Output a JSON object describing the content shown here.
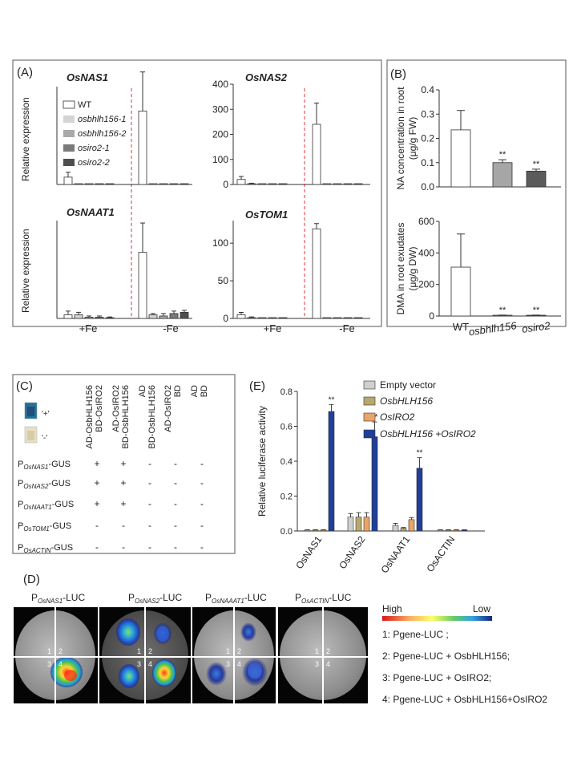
{
  "colors": {
    "wt": "#ffffff",
    "bhlh1": "#d4d4d4",
    "bhlh2": "#a9a9a9",
    "iro1": "#7a7a7a",
    "iro2": "#4e4e4e",
    "empty": "#cfcfcf",
    "osbhlh156": "#b7a96e",
    "osiro2": "#e8a469",
    "combo": "#1f3f99",
    "divider": "#e0333a"
  },
  "panelA": {
    "label": "(A)",
    "ylabel": "Relative expression",
    "xlabels": [
      "+Fe",
      "-Fe"
    ],
    "legend": [
      "WT",
      "osbhlh156-1",
      "osbhlh156-2",
      "osiro2-1",
      "osiro2-2"
    ]
  },
  "panelB": {
    "label": "(B)"
  },
  "panelC": {
    "label": "(C)",
    "plus_label": "'+'",
    "minus_label": "'-'",
    "col_headers": [
      [
        "AD-OsbHLH156",
        "BD-OsIRO2"
      ],
      [
        "AD-OsIRO2",
        "BD-OsbHLH156"
      ],
      [
        "AD",
        "BD-OsbHLH156"
      ],
      [
        "AD-OsIRO2",
        "BD"
      ],
      [
        "AD",
        "BD"
      ]
    ],
    "rows": [
      {
        "pre": "P",
        "sub": "OsNAS1",
        "post": "-GUS",
        "vals": [
          "+",
          "+",
          "-",
          "-",
          "-"
        ]
      },
      {
        "pre": "P",
        "sub": "OsNAS2",
        "post": "-GUS",
        "vals": [
          "+",
          "+",
          "-",
          "-",
          "-"
        ]
      },
      {
        "pre": "P",
        "sub": "OsNAAT1",
        "post": "-GUS",
        "vals": [
          "+",
          "+",
          "-",
          "-",
          "-"
        ]
      },
      {
        "pre": "P",
        "sub": "OsTOM1",
        "post": "-GUS",
        "vals": [
          "-",
          "-",
          "-",
          "-",
          "-"
        ]
      },
      {
        "pre": "P",
        "sub": "OsACTIN",
        "post": "-GUS",
        "vals": [
          "-",
          "-",
          "-",
          "-",
          "-"
        ]
      }
    ]
  },
  "panelD": {
    "label": "(D)",
    "titles": [
      {
        "pre": "P",
        "sub": "OsNAS1",
        "post": "-LUC"
      },
      {
        "pre": "P",
        "sub": "OsNAS2",
        "post": "-LUC"
      },
      {
        "pre": "P",
        "sub": "OsNAAAT1",
        "post": "-LUC"
      },
      {
        "pre": "P",
        "sub": "OsACTIN",
        "post": "-LUC"
      }
    ],
    "quadrant_numbers": [
      "1",
      "2",
      "3",
      "4"
    ],
    "scale_high": "High",
    "scale_low": "Low",
    "legend": [
      "1: Pgene-LUC ;",
      "2: Pgene-LUC + OsbHLH156;",
      "3: Pgene-LUC + OsIRO2;",
      "4: Pgene-LUC + OsbHLH156+OsIRO2"
    ]
  },
  "panelE": {
    "label": "(E)"
  },
  "chart_data": [
    {
      "type": "bar",
      "panel": "A",
      "title": "OsNAS1",
      "ylim": [
        0,
        20
      ],
      "yticks": [],
      "categories": [
        "+Fe",
        "-Fe"
      ],
      "series": [
        {
          "name": "WT",
          "values": [
            1.5,
            15
          ],
          "errors": [
            1,
            8
          ]
        },
        {
          "name": "osbhlh156-1",
          "values": [
            0.1,
            0.1
          ],
          "errors": [
            0,
            0
          ]
        },
        {
          "name": "osbhlh156-2",
          "values": [
            0.1,
            0.1
          ],
          "errors": [
            0,
            0
          ]
        },
        {
          "name": "osiro2-1",
          "values": [
            0.1,
            0.1
          ],
          "errors": [
            0,
            0
          ]
        },
        {
          "name": "osiro2-2",
          "values": [
            0.1,
            0.1
          ],
          "errors": [
            0,
            0
          ]
        }
      ]
    },
    {
      "type": "bar",
      "panel": "A",
      "title": "OsNAS2",
      "ylim": [
        0,
        400
      ],
      "yticks": [
        0,
        100,
        200,
        300,
        400
      ],
      "categories": [
        "+Fe",
        "-Fe"
      ],
      "series": [
        {
          "name": "WT",
          "values": [
            20,
            240
          ],
          "errors": [
            12,
            85
          ]
        },
        {
          "name": "osbhlh156-1",
          "values": [
            2,
            1
          ],
          "errors": [
            3,
            0
          ]
        },
        {
          "name": "osbhlh156-2",
          "values": [
            1,
            1
          ],
          "errors": [
            0,
            0
          ]
        },
        {
          "name": "osiro2-1",
          "values": [
            1,
            1
          ],
          "errors": [
            0,
            0
          ]
        },
        {
          "name": "osiro2-2",
          "values": [
            1,
            1
          ],
          "errors": [
            0,
            0
          ]
        }
      ]
    },
    {
      "type": "bar",
      "panel": "A",
      "title": "OsNAAT1",
      "ylim": [
        0,
        40
      ],
      "yticks": [],
      "categories": [
        "+Fe",
        "-Fe"
      ],
      "series": [
        {
          "name": "WT",
          "values": [
            1.5,
            27
          ],
          "errors": [
            1.5,
            12
          ]
        },
        {
          "name": "osbhlh156-1",
          "values": [
            1.5,
            1.5
          ],
          "errors": [
            1,
            0.5
          ]
        },
        {
          "name": "osbhlh156-2",
          "values": [
            0.5,
            1
          ],
          "errors": [
            0.5,
            1
          ]
        },
        {
          "name": "osiro2-1",
          "values": [
            0.5,
            2
          ],
          "errors": [
            0.5,
            1
          ]
        },
        {
          "name": "osiro2-2",
          "values": [
            0.3,
            2.5
          ],
          "errors": [
            0.3,
            0.8
          ]
        }
      ]
    },
    {
      "type": "bar",
      "panel": "A",
      "title": "OsTOM1",
      "ylim": [
        0,
        130
      ],
      "yticks": [
        0,
        50,
        100
      ],
      "categories": [
        "+Fe",
        "-Fe"
      ],
      "series": [
        {
          "name": "WT",
          "values": [
            5,
            119
          ],
          "errors": [
            3,
            7
          ]
        },
        {
          "name": "osbhlh156-1",
          "values": [
            1,
            1
          ],
          "errors": [
            1,
            0
          ]
        },
        {
          "name": "osbhlh156-2",
          "values": [
            0.5,
            0.5
          ],
          "errors": [
            0,
            0
          ]
        },
        {
          "name": "osiro2-1",
          "values": [
            0.5,
            0.5
          ],
          "errors": [
            0,
            0
          ]
        },
        {
          "name": "osiro2-2",
          "values": [
            0.5,
            0.5
          ],
          "errors": [
            0,
            0
          ]
        }
      ]
    },
    {
      "type": "bar",
      "panel": "B",
      "ylabel": "NA concentration in root (μg/g FW)",
      "ylim": [
        0,
        0.4
      ],
      "yticks": [
        0.0,
        0.1,
        0.2,
        0.3,
        0.4
      ],
      "categories": [
        "WT",
        "osbhlh156",
        "osiro2"
      ],
      "values": [
        0.235,
        0.1,
        0.065
      ],
      "errors": [
        0.08,
        0.012,
        0.008
      ],
      "significance": [
        "",
        "**",
        "**"
      ]
    },
    {
      "type": "bar",
      "panel": "B",
      "ylabel": "DMA in root exudates (μg/g DW)",
      "ylim": [
        0,
        600
      ],
      "yticks": [
        0,
        200,
        400,
        600
      ],
      "categories": [
        "WT",
        "osbhlh156",
        "osiro2"
      ],
      "values": [
        310,
        4,
        4
      ],
      "errors": [
        210,
        2,
        2
      ],
      "significance": [
        "",
        "**",
        "**"
      ]
    },
    {
      "type": "bar",
      "panel": "E",
      "ylabel": "Relative luciferase activity",
      "ylim": [
        0,
        0.8
      ],
      "yticks": [
        0.0,
        0.2,
        0.4,
        0.6,
        0.8
      ],
      "categories": [
        "OsNAS1",
        "OsNAS2",
        "OsNAAT1",
        "OsACTIN"
      ],
      "series": [
        {
          "name": "Empty vector",
          "values": [
            0.005,
            0.08,
            0.032,
            0.005
          ],
          "errors": [
            0.002,
            0.02,
            0.012,
            0.002
          ]
        },
        {
          "name": "OsbHLH156",
          "values": [
            0.005,
            0.08,
            0.015,
            0.005
          ],
          "errors": [
            0.002,
            0.025,
            0.005,
            0.002
          ]
        },
        {
          "name": "OsIRO2",
          "values": [
            0.005,
            0.08,
            0.065,
            0.005
          ],
          "errors": [
            0.002,
            0.025,
            0.012,
            0.002
          ]
        },
        {
          "name": "OsbHLH156 +OsIRO2",
          "values": [
            0.685,
            0.54,
            0.36,
            0.005
          ],
          "errors": [
            0.04,
            0.085,
            0.06,
            0.002
          ]
        }
      ],
      "significance": [
        "**",
        "**",
        "**",
        ""
      ]
    }
  ]
}
